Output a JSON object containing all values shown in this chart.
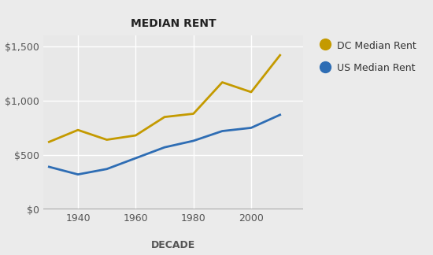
{
  "decades": [
    1930,
    1940,
    1950,
    1960,
    1970,
    1980,
    1990,
    2000,
    2010
  ],
  "dc_rent": [
    620,
    730,
    640,
    680,
    850,
    880,
    1170,
    1080,
    1420
  ],
  "us_rent": [
    390,
    320,
    370,
    470,
    570,
    630,
    720,
    750,
    870
  ],
  "dc_color": "#C49A00",
  "us_color": "#2E6DB4",
  "title": "MEDIAN RENT",
  "xlabel": "DECADE",
  "ylim": [
    0,
    1600
  ],
  "yticks": [
    0,
    500,
    1000,
    1500
  ],
  "ytick_labels": [
    "$0",
    "$500",
    "$1,000",
    "$1,500"
  ],
  "xticks": [
    1940,
    1960,
    1980,
    2000
  ],
  "dc_label": "DC Median Rent",
  "us_label": "US Median Rent",
  "plot_bg_color": "#E8E8E8",
  "fig_bg_color": "#EBEBEB",
  "grid_color": "#FFFFFF",
  "linewidth": 2.0,
  "markersize": 0,
  "tick_color": "#555555",
  "tick_fontsize": 9,
  "title_fontsize": 10,
  "xlabel_fontsize": 9,
  "legend_fontsize": 9,
  "xlim_left": 1928,
  "xlim_right": 2018
}
